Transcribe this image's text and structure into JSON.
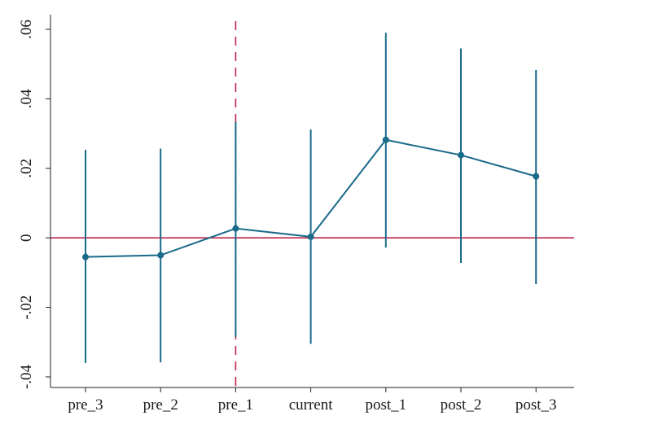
{
  "chart_data": {
    "type": "scatter",
    "categories": [
      "pre_3",
      "pre_2",
      "pre_1",
      "current",
      "post_1",
      "post_2",
      "post_3"
    ],
    "series": [
      {
        "estimates": [
          -0.0055,
          -0.005,
          0.0027,
          0.0003,
          0.0282,
          0.0238,
          0.0177
        ],
        "ci_lower": [
          -0.036,
          -0.0358,
          -0.0285,
          -0.0305,
          -0.0028,
          -0.0072,
          -0.0133
        ],
        "ci_upper": [
          0.0253,
          0.0257,
          0.0333,
          0.0312,
          0.059,
          0.0545,
          0.0483
        ],
        "color": "#1a6a8a"
      }
    ],
    "y_ticks": [
      {
        "value": 0.06,
        "label": ".06"
      },
      {
        "value": 0.04,
        "label": ".04"
      },
      {
        "value": 0.02,
        "label": ".02"
      },
      {
        "value": 0,
        "label": "0"
      },
      {
        "value": -0.02,
        "label": "-.02"
      },
      {
        "value": -0.04,
        "label": "-.04"
      }
    ],
    "ylim": [
      -0.0435,
      0.0625
    ],
    "reference_lines": {
      "horizontal": {
        "value": 0,
        "color": "#c0264c",
        "style": "solid"
      },
      "vertical": {
        "category": "pre_1",
        "color": "#c0264c",
        "style": "dashed"
      }
    },
    "title": "",
    "xlabel": "",
    "ylabel": "",
    "grid": false,
    "legend": "none"
  }
}
